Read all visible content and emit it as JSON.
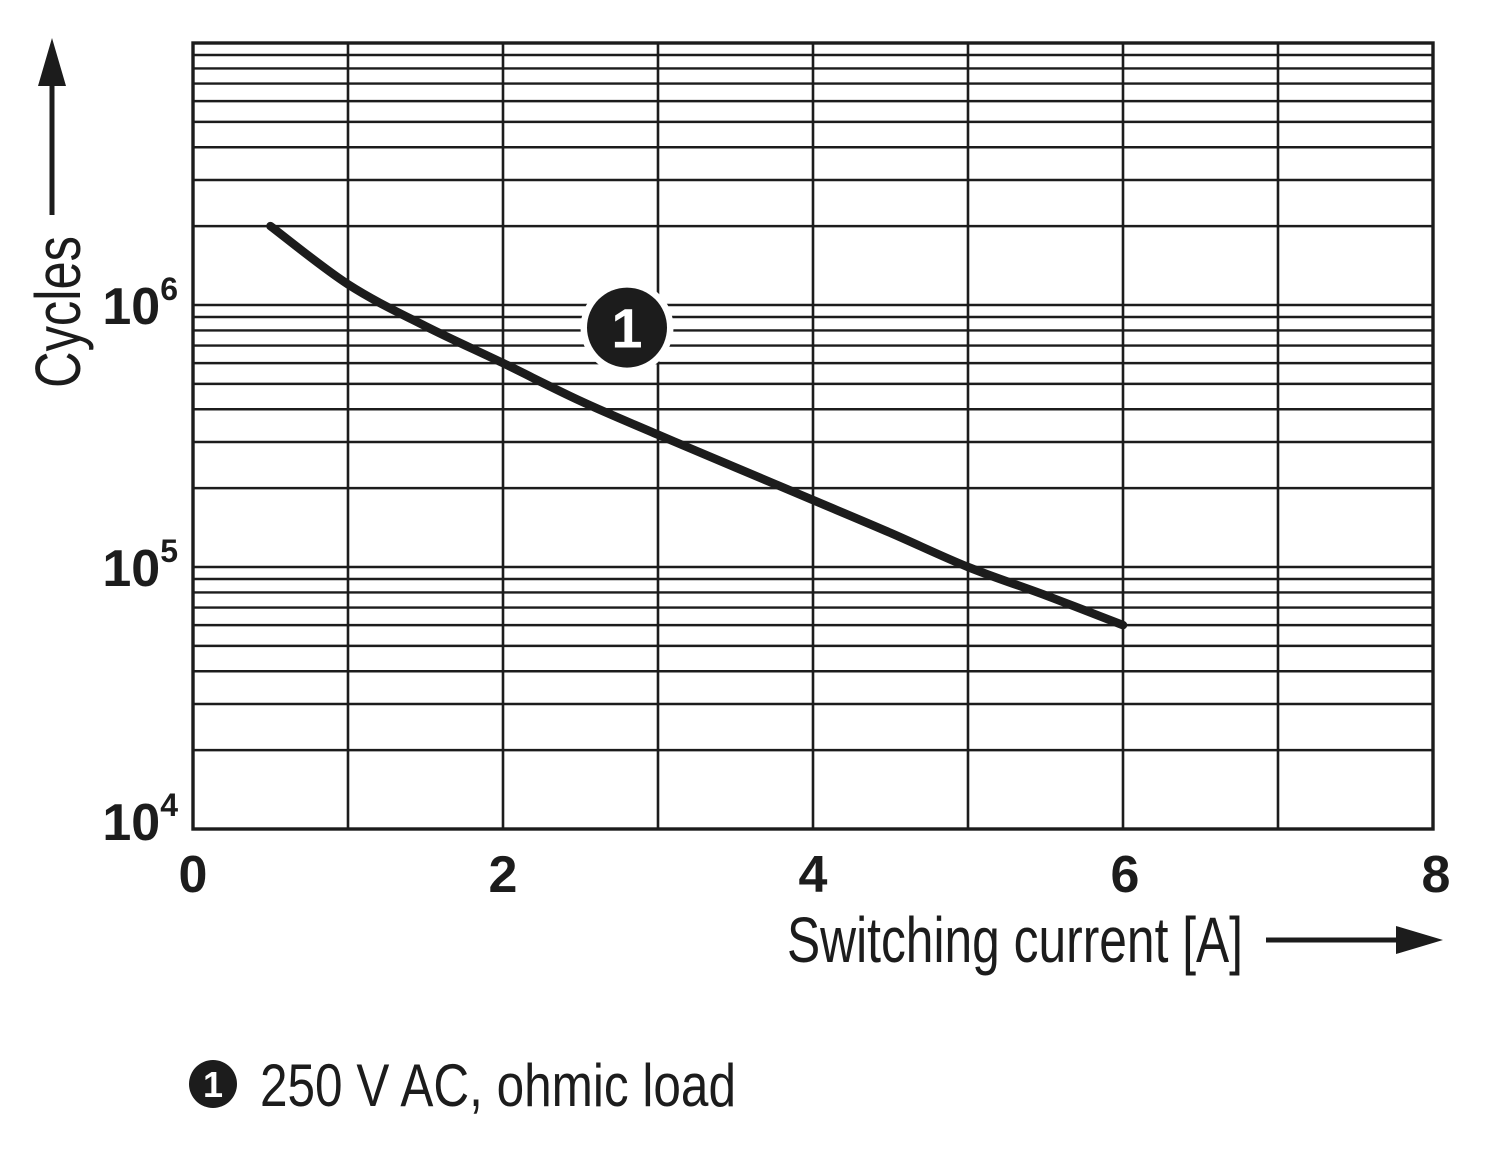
{
  "chart_data": {
    "type": "line",
    "title": "",
    "xlabel": "Switching current [A]",
    "ylabel": "Cycles",
    "x_axis": {
      "min": 0,
      "max": 8,
      "ticks": [
        0,
        2,
        4,
        6,
        8
      ],
      "gridline_step": 1
    },
    "y_axis": {
      "scale": "log",
      "min": 10000,
      "max": 10000000,
      "minor_gridlines": true,
      "ticks": [
        {
          "base": "10",
          "exp": "4",
          "value": 10000
        },
        {
          "base": "10",
          "exp": "5",
          "value": 100000
        },
        {
          "base": "10",
          "exp": "6",
          "value": 1000000
        }
      ]
    },
    "grid": "on",
    "series": [
      {
        "name": "250 V AC, ohmic load",
        "marker_label": "1",
        "points": [
          [
            0.5,
            2000000
          ],
          [
            1.0,
            1200000
          ],
          [
            1.5,
            830000
          ],
          [
            2.0,
            600000
          ],
          [
            2.5,
            430000
          ],
          [
            3.0,
            320000
          ],
          [
            3.5,
            240000
          ],
          [
            4.0,
            180000
          ],
          [
            4.5,
            135000
          ],
          [
            5.0,
            100000
          ],
          [
            5.5,
            78000
          ],
          [
            6.0,
            60000
          ]
        ]
      }
    ],
    "annotations": [
      {
        "label": "1",
        "x": 2.8,
        "y": 820000
      }
    ]
  },
  "legend": {
    "marker": "1",
    "label": "250 V AC, ohmic load"
  },
  "colors": {
    "ink": "#1c1c1c",
    "background": "#ffffff",
    "marker_fill": "#1c1c1c",
    "marker_text": "#ffffff"
  }
}
